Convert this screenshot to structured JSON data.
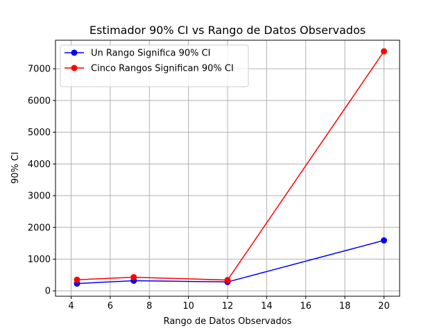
{
  "chart_data": {
    "type": "line",
    "title": "Estimador 90% CI vs Rango de Datos Observados",
    "xlabel": "Rango de Datos Observados",
    "ylabel": "90% CI",
    "xlim": [
      3.2,
      20.8
    ],
    "ylim": [
      -170,
      7900
    ],
    "xticks": [
      4,
      6,
      8,
      10,
      12,
      14,
      16,
      18,
      20
    ],
    "yticks": [
      0,
      1000,
      2000,
      3000,
      4000,
      5000,
      6000,
      7000
    ],
    "grid": true,
    "legend_position": "upper-left",
    "x": [
      4.3,
      7.2,
      12,
      20
    ],
    "series": [
      {
        "name": "Un Rango Significa 90% CI",
        "color": "#0000ff",
        "values": [
          230,
          320,
          280,
          1590
        ]
      },
      {
        "name": "Cinco Rangos Significan 90% CI",
        "color": "#ff0000",
        "values": [
          350,
          430,
          340,
          7550
        ]
      }
    ]
  }
}
